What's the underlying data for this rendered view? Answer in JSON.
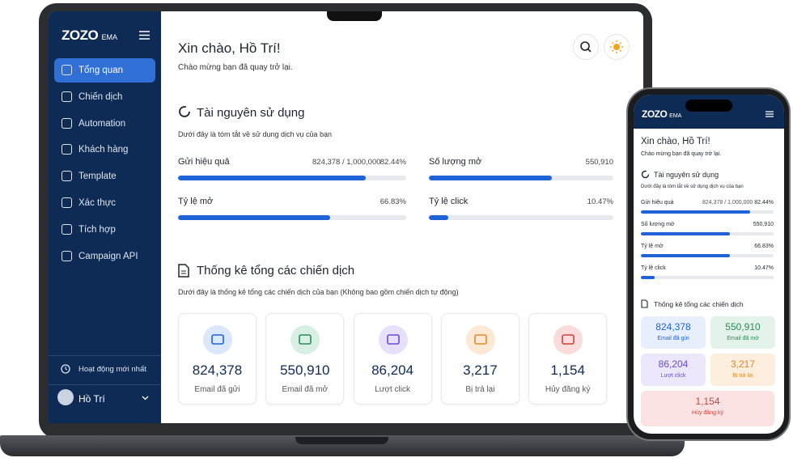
{
  "brand": {
    "name": "ZOZO",
    "suffix": "EMA"
  },
  "sidebar": {
    "items": [
      "Tổng quan",
      "Chiến dịch",
      "Automation",
      "Khách hàng",
      "Template",
      "Xác thực",
      "Tích hợp",
      "Campaign API"
    ],
    "recent": "Hoạt động mới nhất",
    "user": "Hồ Trí"
  },
  "header": {
    "greeting": "Xin chào, Hồ Trí!",
    "subtitle": "Chào mừng bạn đã quay trở lại."
  },
  "usage": {
    "title": "Tài nguyên sử dụng",
    "description": "Dưới đây là tóm tắt về sử dụng dịch vụ của bạn",
    "metrics": [
      {
        "label": "Gửi hiệu quả",
        "detail": "824,378 / 1,000,000",
        "value": "82.44%"
      },
      {
        "label": "Số lượng mở",
        "value": "550,910"
      },
      {
        "label": "Tỷ lệ mở",
        "value": "66.83%"
      },
      {
        "label": "Tỷ lệ click",
        "value": "10.47%"
      }
    ]
  },
  "campaigns": {
    "title": "Thống kê tổng các chiến dịch",
    "description": "Dưới đây là thống kê tổng các chiến dịch của bạn (Không bao gồm chiến dịch tự động)",
    "stats": [
      {
        "value": "824,378",
        "label": "Email đã gửi"
      },
      {
        "value": "550,910",
        "label": "Email đã mở"
      },
      {
        "value": "86,204",
        "label": "Lượt click"
      },
      {
        "value": "3,217",
        "label": "Bị trả lại"
      },
      {
        "value": "1,154",
        "label": "Hủy đăng ký"
      }
    ]
  }
}
